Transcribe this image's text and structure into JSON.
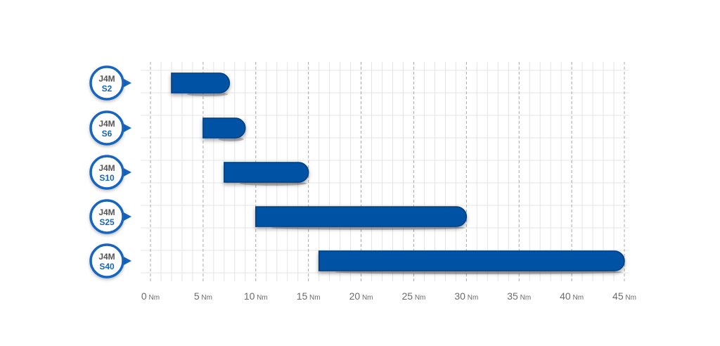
{
  "chart_data": {
    "type": "bar",
    "orientation": "horizontal",
    "title": "",
    "xlabel": "",
    "ylabel": "",
    "unit": "Nm",
    "xlim": [
      0,
      45
    ],
    "xticks": [
      0,
      5,
      10,
      15,
      20,
      25,
      30,
      35,
      40,
      45
    ],
    "grid": true,
    "categories": [
      {
        "model": "J4M",
        "size": "S2"
      },
      {
        "model": "J4M",
        "size": "S6"
      },
      {
        "model": "J4M",
        "size": "S10"
      },
      {
        "model": "J4M",
        "size": "S25"
      },
      {
        "model": "J4M",
        "size": "S40"
      }
    ],
    "ranges": [
      {
        "min": 2,
        "max": 7.5
      },
      {
        "min": 5,
        "max": 9
      },
      {
        "min": 7,
        "max": 15
      },
      {
        "min": 10,
        "max": 30
      },
      {
        "min": 16,
        "max": 45
      }
    ],
    "colors": {
      "bar": "#0353a4",
      "bar_edge": "#023e7d",
      "badge_ring": "#1565c0",
      "grid": "#e4e4e4",
      "major_grid": "#a8a8a8"
    }
  }
}
